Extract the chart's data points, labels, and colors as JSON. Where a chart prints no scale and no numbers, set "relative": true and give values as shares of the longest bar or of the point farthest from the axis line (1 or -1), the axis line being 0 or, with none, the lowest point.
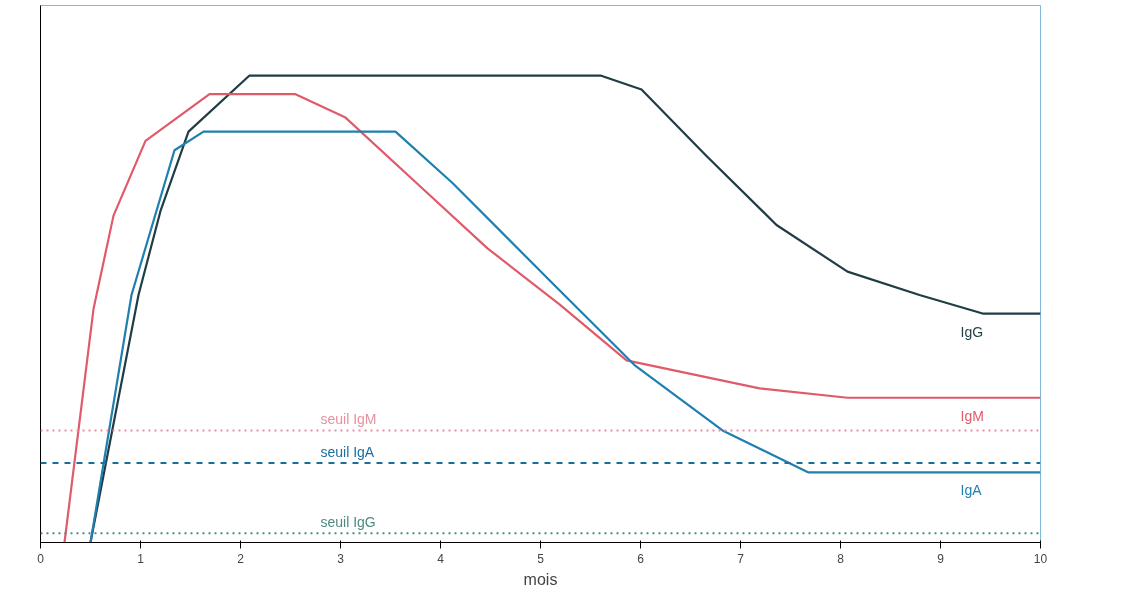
{
  "chart_data": {
    "type": "line",
    "relative": true,
    "xlabel": "mois",
    "xlim": [
      0,
      10
    ],
    "xticks": [
      0,
      1,
      2,
      3,
      4,
      5,
      6,
      7,
      8,
      9,
      10
    ],
    "grid": false,
    "legend": false,
    "marker": "none",
    "line_style": "solid",
    "series": [
      {
        "name": "IgG",
        "color": "#1f3d44",
        "x": [
          0.5,
          0.98,
          1.2,
          1.48,
          2.09,
          5.6,
          6.01,
          6.65,
          7.36,
          8.07,
          8.79,
          9.43,
          10
        ],
        "values": [
          0,
          0.53,
          0.71,
          0.88,
          1.0,
          1.0,
          0.97,
          0.83,
          0.68,
          0.58,
          0.53,
          0.49,
          0.49
        ]
      },
      {
        "name": "IgM",
        "color": "#e05a6a",
        "x": [
          0.24,
          0.53,
          0.73,
          1.05,
          1.69,
          1.84,
          2.55,
          3.05,
          3.76,
          4.47,
          5.19,
          5.86,
          7.19,
          8.07,
          10
        ],
        "values": [
          0,
          0.5,
          0.7,
          0.86,
          0.96,
          0.96,
          0.96,
          0.91,
          0.77,
          0.63,
          0.51,
          0.39,
          0.33,
          0.31,
          0.31
        ]
      },
      {
        "name": "IgA",
        "color": "#1f7fae",
        "x": [
          0.5,
          0.91,
          1.34,
          1.63,
          3.55,
          4.12,
          5.19,
          5.94,
          6.82,
          7.68,
          10
        ],
        "values": [
          0,
          0.53,
          0.84,
          0.88,
          0.88,
          0.77,
          0.54,
          0.38,
          0.24,
          0.15,
          0.15
        ]
      }
    ],
    "ref_lines": [
      {
        "axis": "y",
        "value": 0.24,
        "label": "seuil IgM",
        "color": "#e890a0",
        "line_style": "dotted"
      },
      {
        "axis": "y",
        "value": 0.17,
        "label": "seuil IgA",
        "color": "#1a6fa0",
        "line_style": "dashed"
      },
      {
        "axis": "y",
        "value": 0.02,
        "label": "seuil IgG",
        "color": "#4f8a80",
        "line_style": "dotted"
      }
    ]
  }
}
